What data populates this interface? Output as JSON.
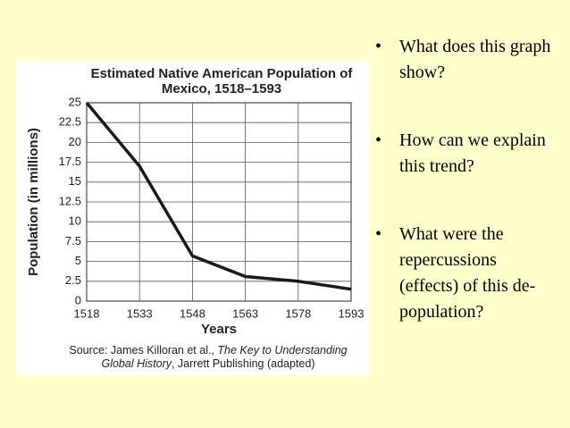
{
  "chart_data": {
    "type": "line",
    "title": "Estimated Native American Population of Mexico, 1518–1593",
    "x_label": "Years",
    "y_label": "Population (in millions)",
    "x": [
      1518,
      1533,
      1548,
      1563,
      1578,
      1593
    ],
    "values": [
      25,
      17,
      5.7,
      3.1,
      2.5,
      1.5
    ],
    "color": "#1a1a1a",
    "xlim": [
      1518,
      1593
    ],
    "xticks": [
      1518,
      1533,
      1548,
      1563,
      1578,
      1593
    ],
    "ylim": [
      0,
      25
    ],
    "yticks": [
      0,
      2.5,
      5,
      7.5,
      10,
      12.5,
      15,
      17.5,
      20,
      22.5,
      25
    ],
    "grid": true,
    "source": [
      "Source: James Killoran et al., ",
      "The Key to Understanding Global History",
      ", Jarrett Publishing (adapted)"
    ]
  },
  "bullets": [
    "What does this graph show?",
    "How can we explain this trend?",
    "What were the repercussions (effects) of this de-population?"
  ]
}
